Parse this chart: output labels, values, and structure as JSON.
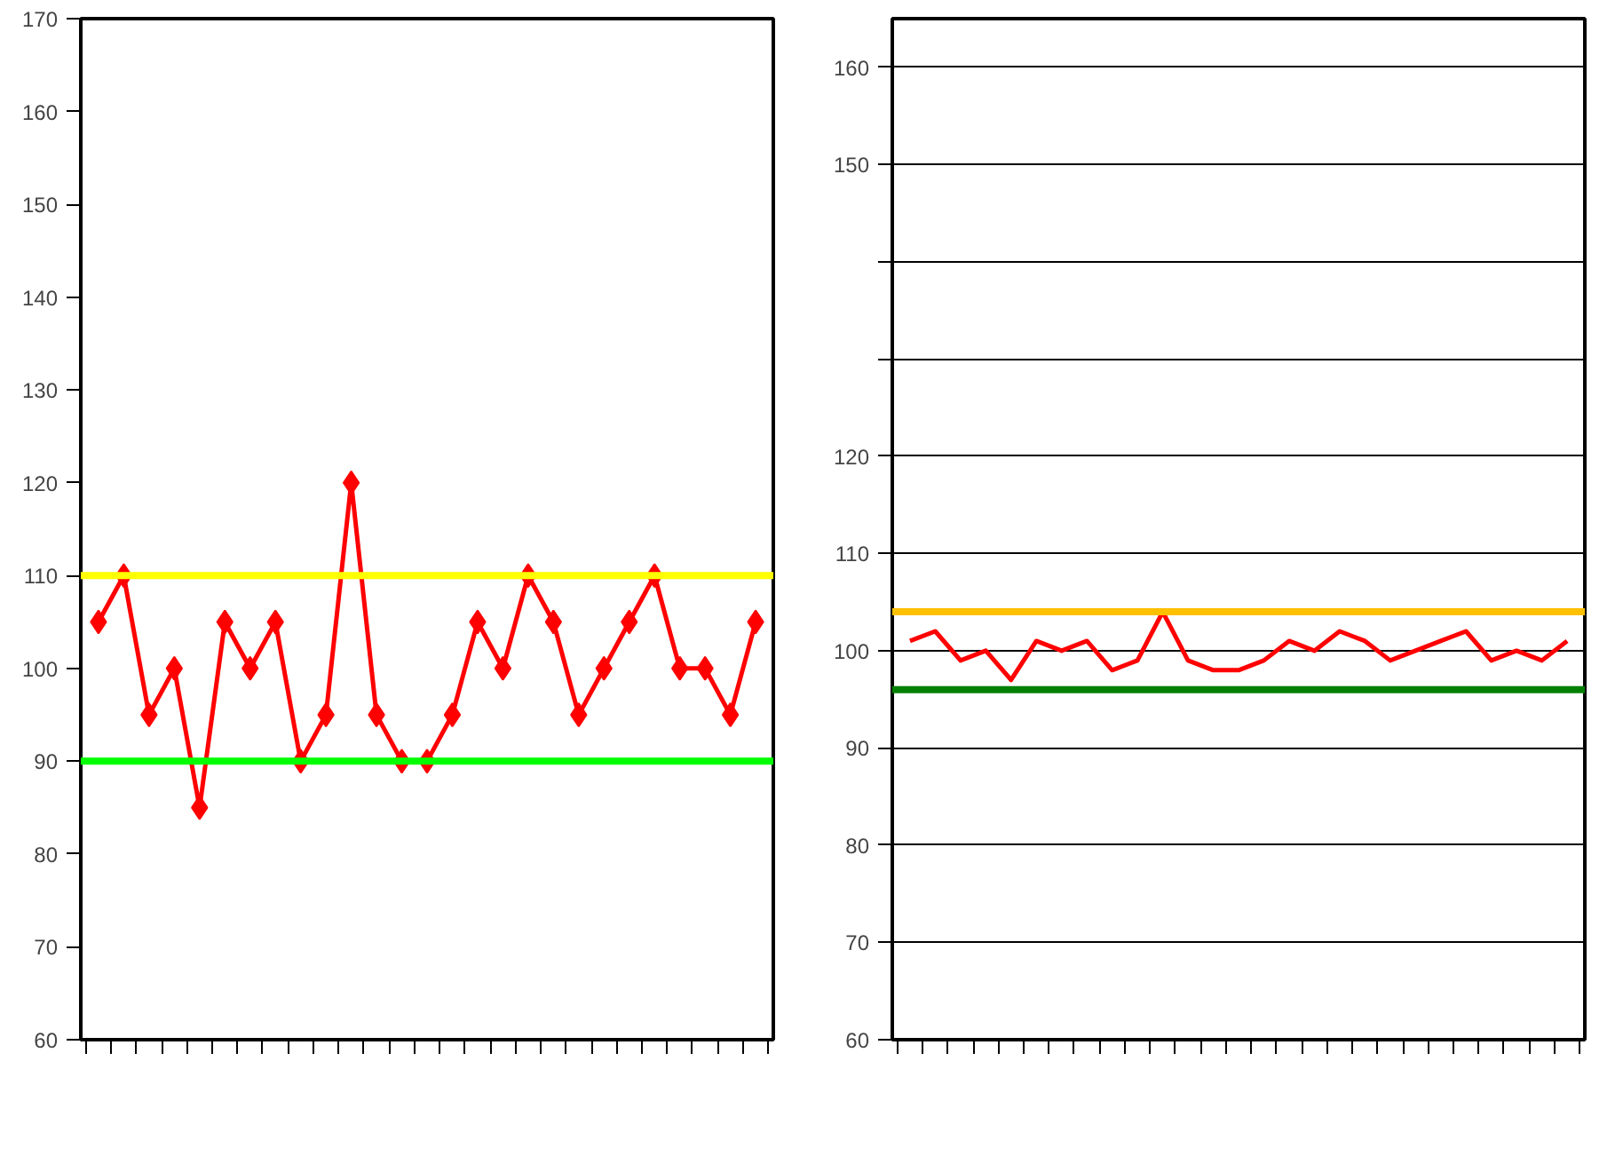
{
  "chart_data": [
    {
      "type": "line",
      "categories": [
        null,
        null,
        null,
        null,
        null,
        null,
        null,
        null,
        null,
        null,
        null,
        null,
        null,
        null,
        null,
        null,
        null,
        null,
        null,
        null,
        null,
        null,
        null,
        null,
        null,
        null,
        null
      ],
      "series": [
        {
          "color": "#ff0000",
          "values": [
            105,
            110,
            95,
            100,
            85,
            105,
            100,
            105,
            90,
            95,
            120,
            95,
            90,
            90,
            95,
            105,
            100,
            110,
            105,
            95,
            100,
            105,
            110,
            100,
            100,
            95,
            105
          ]
        }
      ],
      "ylim": [
        60,
        170
      ],
      "yticks": [
        60,
        70,
        80,
        90,
        100,
        110,
        120,
        130,
        140,
        150,
        160,
        170
      ],
      "grid": false,
      "marker": "diamond",
      "line_style": "solid",
      "tick_labels": "y",
      "ref_lines": [
        {
          "axis": "y",
          "value": 110,
          "color": "#ffff00"
        },
        {
          "axis": "y",
          "value": 90,
          "color": "#00ff00"
        }
      ]
    },
    {
      "type": "line",
      "categories": [
        null,
        null,
        null,
        null,
        null,
        null,
        null,
        null,
        null,
        null,
        null,
        null,
        null,
        null,
        null,
        null,
        null,
        null,
        null,
        null,
        null,
        null,
        null,
        null,
        null,
        null,
        null
      ],
      "series": [
        {
          "color": "#ff0000",
          "values": [
            101,
            102,
            99,
            100,
            97,
            101,
            100,
            101,
            98,
            99,
            104,
            99,
            98,
            98,
            99,
            101,
            100,
            102,
            101,
            99,
            100,
            101,
            102,
            99,
            100,
            99,
            101
          ]
        }
      ],
      "ylim": [
        60,
        165
      ],
      "yticks": [
        60,
        70,
        80,
        90,
        100,
        110,
        120,
        {
          "value": 130,
          "label": null
        },
        {
          "value": 140,
          "label": null
        },
        150,
        160
      ],
      "grid": "y",
      "marker": "none",
      "line_style": "solid",
      "tick_labels": "y",
      "ref_lines": [
        {
          "axis": "y",
          "value": 104,
          "color": "#ffc000"
        },
        {
          "axis": "y",
          "value": 96,
          "color": "#008000"
        }
      ]
    }
  ]
}
